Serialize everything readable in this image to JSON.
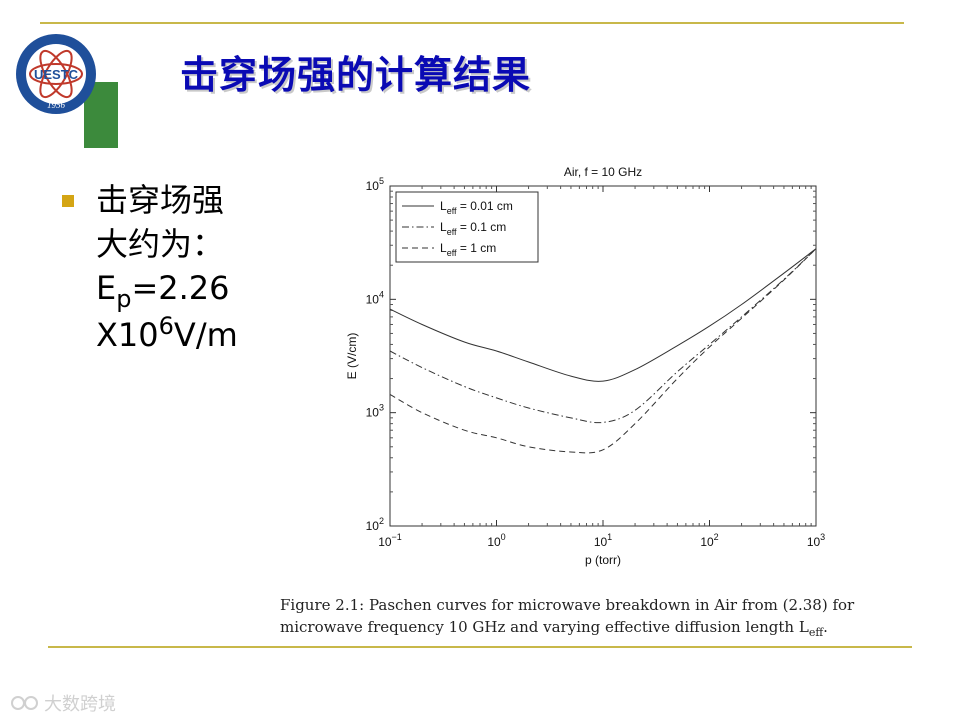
{
  "slide": {
    "title": "击穿场强的计算结果",
    "logo_text": "UESTC",
    "logo_year": "1956",
    "accent_line_color": "#c8b84a"
  },
  "bullet": {
    "line1": "击穿场强",
    "line2": "大约为：",
    "ep_base": "E",
    "ep_sub": "p",
    "ep_value": "=2.26",
    "exp_prefix": "X10",
    "exp_sup": "6",
    "exp_unit": "V/m",
    "marker_color": "#d4a514"
  },
  "caption": {
    "line1": "Figure 2.1: Paschen curves for microwave breakdown in Air from (2.38) for",
    "line2": "microwave frequency 10 GHz and varying effective diffusion length L",
    "line2_sub": "eff",
    "line2_end": "."
  },
  "watermark": {
    "text": "大数跨境"
  },
  "chart_data": {
    "type": "line",
    "title": "Air, f = 10 GHz",
    "xlabel": "p (torr)",
    "ylabel": "E (V/cm)",
    "xscale": "log",
    "yscale": "log",
    "xlim": [
      0.1,
      1000
    ],
    "ylim": [
      100,
      100000
    ],
    "x_ticks": [
      {
        "base": "10",
        "exp": "−1",
        "value": 0.1
      },
      {
        "base": "10",
        "exp": "0",
        "value": 1
      },
      {
        "base": "10",
        "exp": "1",
        "value": 10
      },
      {
        "base": "10",
        "exp": "2",
        "value": 100
      },
      {
        "base": "10",
        "exp": "3",
        "value": 1000
      }
    ],
    "y_ticks": [
      {
        "base": "10",
        "exp": "2",
        "value": 100
      },
      {
        "base": "10",
        "exp": "3",
        "value": 1000
      },
      {
        "base": "10",
        "exp": "4",
        "value": 10000
      },
      {
        "base": "10",
        "exp": "5",
        "value": 100000
      }
    ],
    "grid": false,
    "legend_position": "top-left",
    "series": [
      {
        "label_base": "L",
        "label_sub": "eff",
        "label_rest": " = 0.01 cm",
        "dash": "solid",
        "x": [
          0.1,
          0.2,
          0.5,
          1,
          2,
          5,
          10,
          20,
          50,
          100,
          200,
          500,
          1000
        ],
        "y": [
          8200,
          6000,
          4200,
          3500,
          2800,
          2100,
          1900,
          2400,
          3900,
          5800,
          9000,
          17000,
          28000
        ]
      },
      {
        "label_base": "L",
        "label_sub": "eff",
        "label_rest": " = 0.1 cm",
        "dash": "dashdot",
        "x": [
          0.1,
          0.2,
          0.5,
          1,
          2,
          5,
          10,
          20,
          50,
          100,
          200,
          500,
          1000
        ],
        "y": [
          3500,
          2500,
          1700,
          1350,
          1100,
          900,
          820,
          1050,
          2300,
          4000,
          7000,
          15000,
          28000
        ]
      },
      {
        "label_base": "L",
        "label_sub": "eff",
        "label_rest": " = 1 cm",
        "dash": "dashed",
        "x": [
          0.1,
          0.2,
          0.5,
          1,
          2,
          5,
          10,
          20,
          50,
          100,
          200,
          500,
          1000
        ],
        "y": [
          1450,
          1000,
          700,
          600,
          500,
          450,
          470,
          800,
          2000,
          3800,
          6800,
          14800,
          28000
        ]
      }
    ]
  }
}
